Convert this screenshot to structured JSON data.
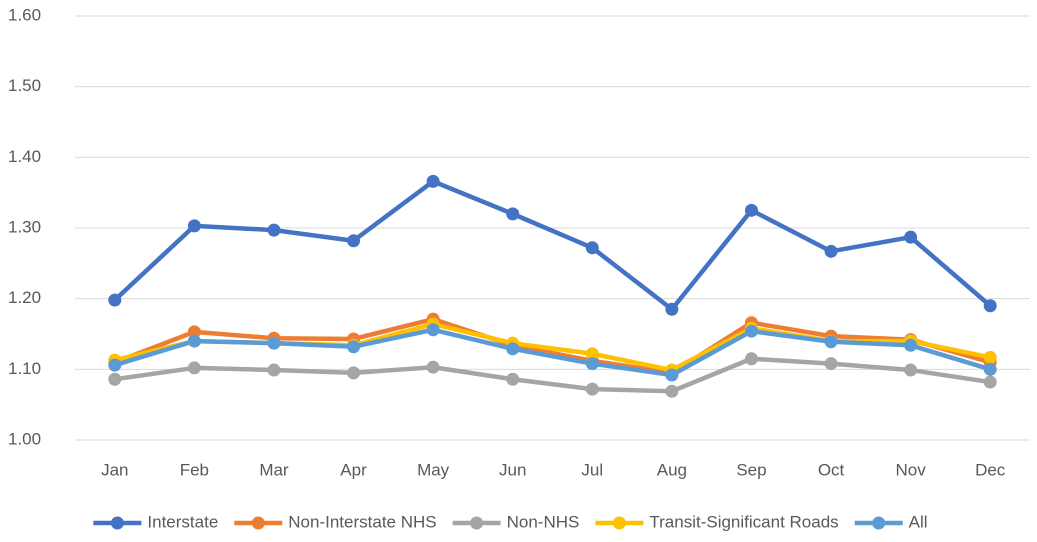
{
  "chart_data": {
    "type": "line",
    "categories": [
      "Jan",
      "Feb",
      "Mar",
      "Apr",
      "May",
      "Jun",
      "Jul",
      "Aug",
      "Sep",
      "Oct",
      "Nov",
      "Dec"
    ],
    "series": [
      {
        "name": "Interstate",
        "color": "#4472c4",
        "values": [
          1.198,
          1.303,
          1.297,
          1.282,
          1.366,
          1.32,
          1.272,
          1.185,
          1.325,
          1.267,
          1.287,
          1.19
        ]
      },
      {
        "name": "Non-Interstate NHS",
        "color": "#ed7d31",
        "values": [
          1.11,
          1.153,
          1.144,
          1.143,
          1.171,
          1.134,
          1.112,
          1.095,
          1.166,
          1.147,
          1.142,
          1.11
        ]
      },
      {
        "name": "Non-NHS",
        "color": "#a5a5a5",
        "values": [
          1.086,
          1.102,
          1.099,
          1.095,
          1.103,
          1.086,
          1.072,
          1.069,
          1.115,
          1.108,
          1.099,
          1.082
        ]
      },
      {
        "name": "Transit-Significant Roads",
        "color": "#ffc000",
        "values": [
          1.113,
          1.14,
          1.137,
          1.134,
          1.164,
          1.137,
          1.122,
          1.099,
          1.158,
          1.14,
          1.14,
          1.117
        ]
      },
      {
        "name": "All",
        "color": "#5b9bd5",
        "values": [
          1.106,
          1.14,
          1.137,
          1.132,
          1.156,
          1.129,
          1.108,
          1.092,
          1.154,
          1.139,
          1.134,
          1.1
        ]
      }
    ],
    "ylim": [
      1.0,
      1.6
    ],
    "yticks": [
      {
        "value": 1.0,
        "label": "1.00"
      },
      {
        "value": 1.1,
        "label": "1.10"
      },
      {
        "value": 1.2,
        "label": "1.20"
      },
      {
        "value": 1.3,
        "label": "1.30"
      },
      {
        "value": 1.4,
        "label": "1.40"
      },
      {
        "value": 1.5,
        "label": "1.50"
      },
      {
        "value": 1.6,
        "label": "1.60"
      }
    ],
    "grid": true,
    "legend": "bottom"
  }
}
